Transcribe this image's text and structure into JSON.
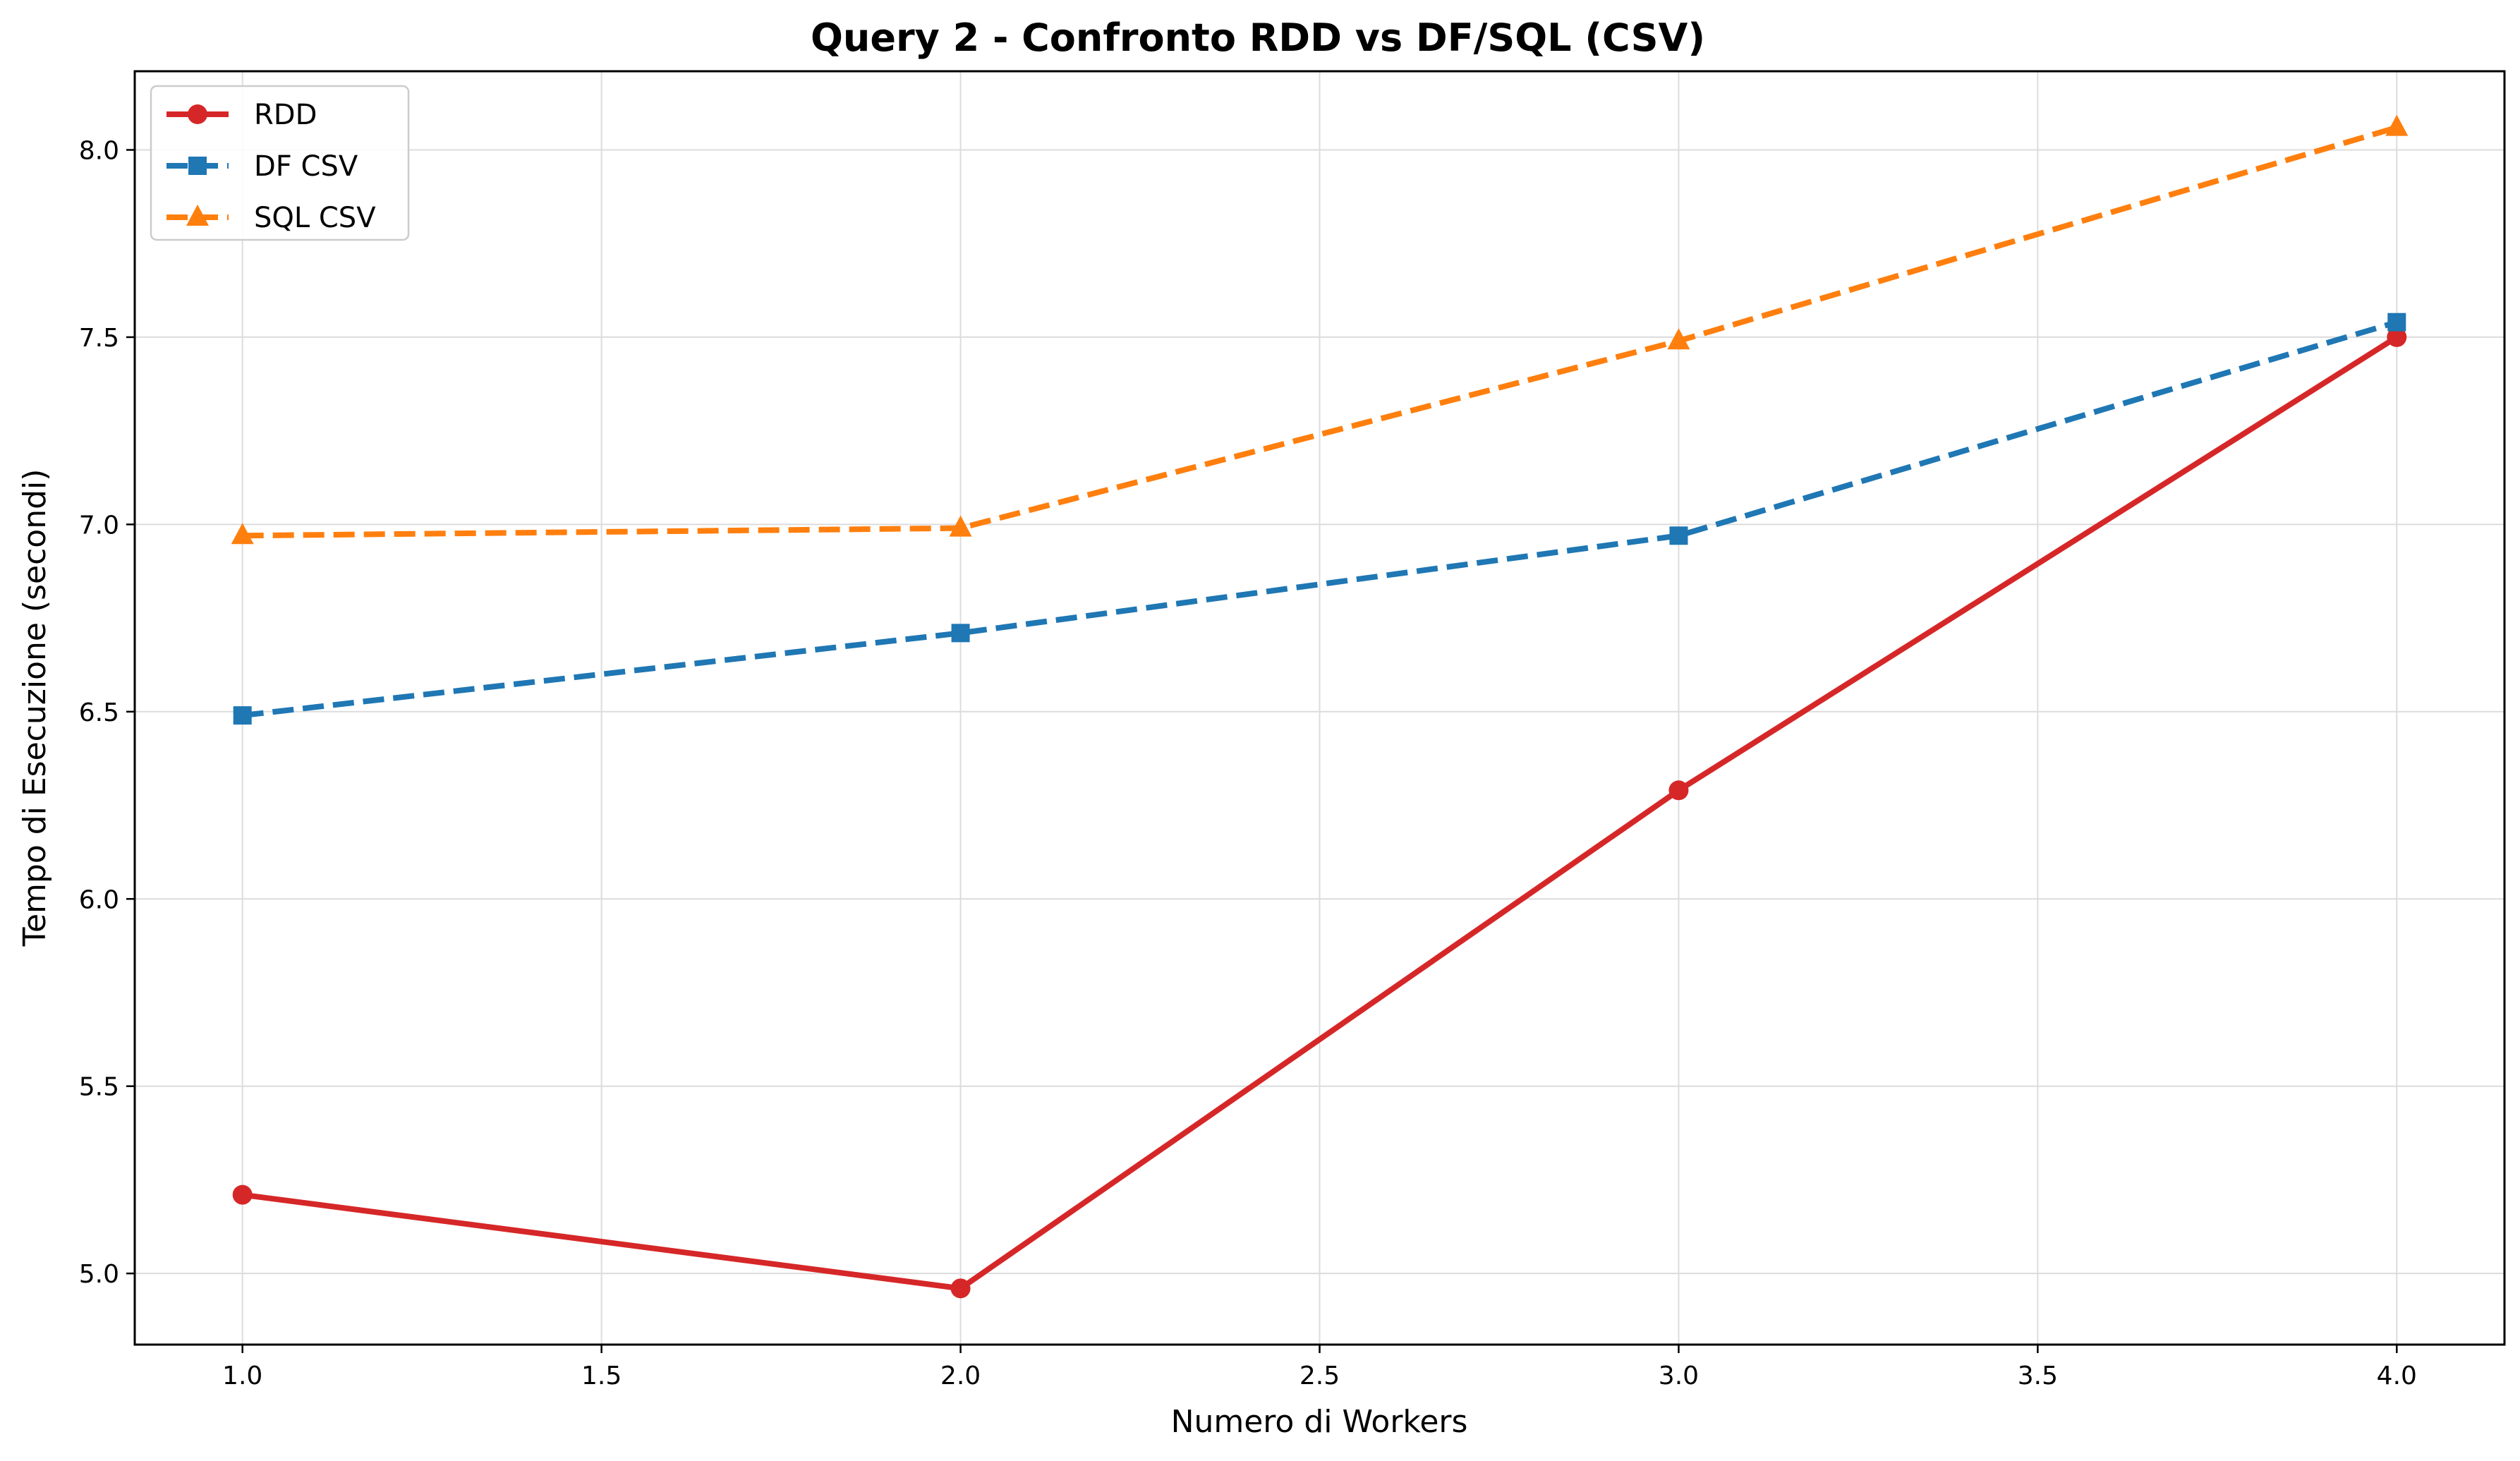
{
  "chart_data": {
    "type": "line",
    "title": "Query 2 - Confronto RDD vs DF/SQL (CSV)",
    "xlabel": "Numero di Workers",
    "ylabel": "Tempo di Esecuzione (secondi)",
    "xlim": [
      0.85,
      4.15
    ],
    "ylim": [
      4.81,
      8.21
    ],
    "xticks": [
      "1.0",
      "1.5",
      "2.0",
      "2.5",
      "3.0",
      "3.5",
      "4.0"
    ],
    "yticks": [
      "5.0",
      "5.5",
      "6.0",
      "6.5",
      "7.0",
      "7.5",
      "8.0"
    ],
    "grid": true,
    "legend_position": "top-left",
    "x": [
      1,
      2,
      3,
      4
    ],
    "series": [
      {
        "name": "RDD",
        "values": [
          5.21,
          4.96,
          6.29,
          7.5
        ],
        "color": "#d62728",
        "marker": "circle",
        "linestyle": "solid"
      },
      {
        "name": "DF CSV",
        "values": [
          6.49,
          6.71,
          6.97,
          7.54
        ],
        "color": "#1f77b4",
        "marker": "square",
        "linestyle": "dashed"
      },
      {
        "name": "SQL CSV",
        "values": [
          6.97,
          6.99,
          7.49,
          8.06
        ],
        "color": "#ff7f0e",
        "marker": "triangle",
        "linestyle": "dashed"
      }
    ]
  }
}
